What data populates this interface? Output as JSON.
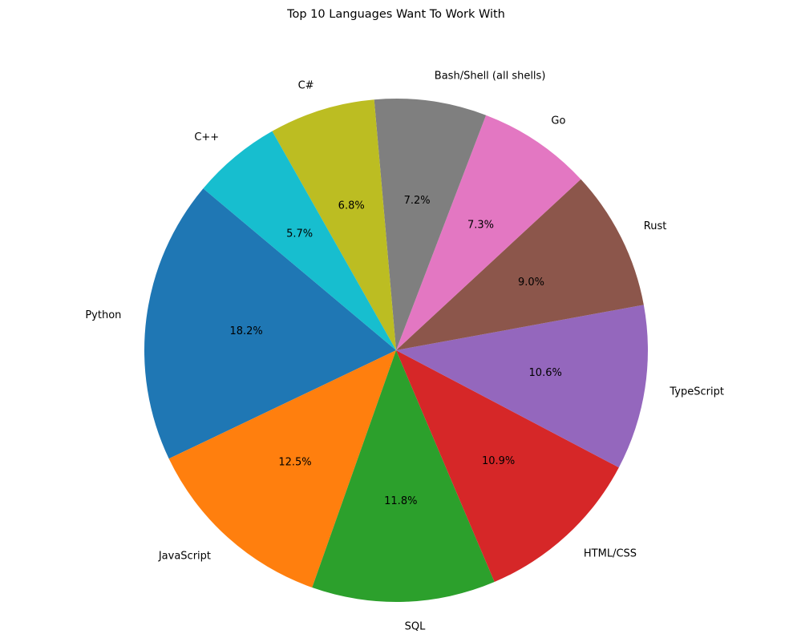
{
  "chart_data": {
    "type": "pie",
    "title": "Top 10 Languages Want To Work With",
    "start_angle_deg": 140,
    "direction": "counterclockwise",
    "slices": [
      {
        "label": "Python",
        "value": 18.2,
        "pct_text": "18.2%",
        "color": "#1f77b4"
      },
      {
        "label": "JavaScript",
        "value": 12.5,
        "pct_text": "12.5%",
        "color": "#ff7f0e"
      },
      {
        "label": "SQL",
        "value": 11.8,
        "pct_text": "11.8%",
        "color": "#2ca02c"
      },
      {
        "label": "HTML/CSS",
        "value": 10.9,
        "pct_text": "10.9%",
        "color": "#d62728"
      },
      {
        "label": "TypeScript",
        "value": 10.6,
        "pct_text": "10.6%",
        "color": "#9467bd"
      },
      {
        "label": "Rust",
        "value": 9.0,
        "pct_text": "9.0%",
        "color": "#8c564b"
      },
      {
        "label": "Go",
        "value": 7.3,
        "pct_text": "7.3%",
        "color": "#e377c2"
      },
      {
        "label": "Bash/Shell (all shells)",
        "value": 7.2,
        "pct_text": "7.2%",
        "color": "#7f7f7f"
      },
      {
        "label": "C#",
        "value": 6.8,
        "pct_text": "6.8%",
        "color": "#bcbd22"
      },
      {
        "label": "C++",
        "value": 5.7,
        "pct_text": "5.7%",
        "color": "#17becf"
      }
    ]
  }
}
